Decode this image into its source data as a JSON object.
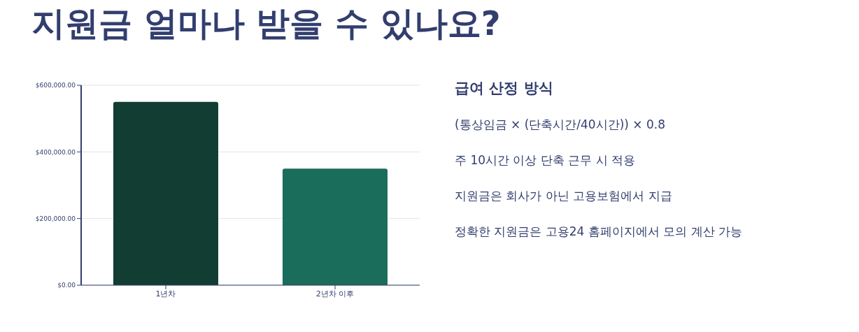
{
  "chart_data": {
    "type": "bar",
    "title": "지원금 얼마나 받을 수 있나요?",
    "categories": [
      "1년차",
      "2년차 이후"
    ],
    "values": [
      550000,
      350000
    ],
    "colors": [
      "#113d33",
      "#1a6d5a"
    ],
    "ylim": [
      0,
      600000
    ],
    "yticks": [
      {
        "value": 0,
        "label": "$0.00"
      },
      {
        "value": 200000,
        "label": "$200,000.00"
      },
      {
        "value": 400000,
        "label": "$400,000.00"
      },
      {
        "value": 600000,
        "label": "$600,000.00"
      }
    ],
    "grid": "y",
    "annotations": [
      "급여 산정 방식",
      "(통상임금 × (단축시간/40시간)) × 0.8",
      "주 10시간 이상 단축 근무 시 적용",
      "지원금은 회사가 아닌 고용보험에서 지급",
      "정확한 지원금은 고용24 홈페이지에서 모의 계산 가능"
    ]
  }
}
